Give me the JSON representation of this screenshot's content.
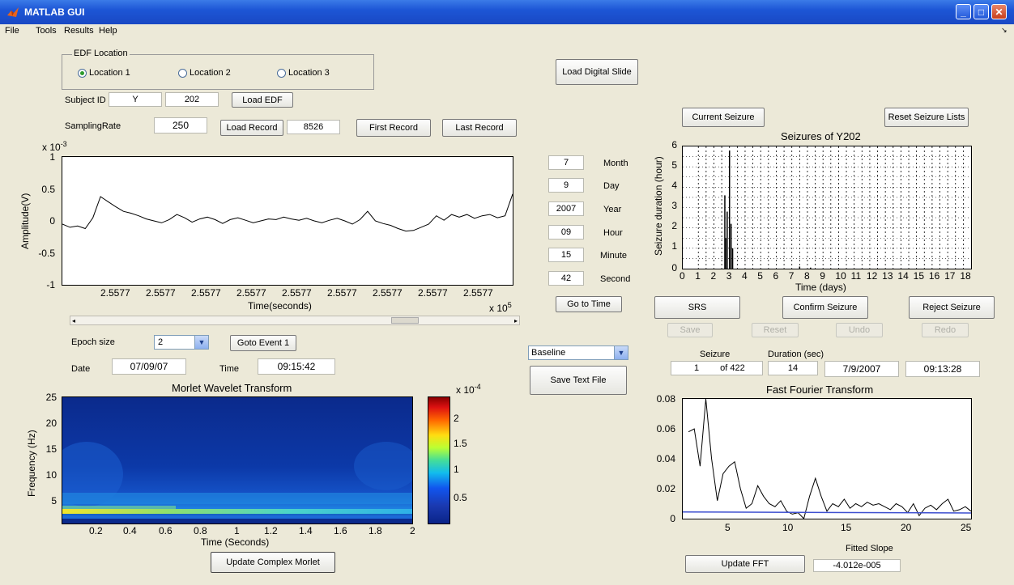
{
  "window": {
    "title": "MATLAB GUI",
    "minimize": "_",
    "maximize": "□",
    "close": "✕"
  },
  "menu": {
    "items": [
      "File",
      "Tools",
      "Results",
      "Help"
    ],
    "corner": "↘"
  },
  "edf": {
    "group_label": "EDF Location",
    "locations": [
      "Location 1",
      "Location 2",
      "Location 3"
    ],
    "selected": 0,
    "subject_label": "Subject ID",
    "subject_name": "Y",
    "subject_number": "202",
    "load_edf": "Load EDF"
  },
  "load_digital_slide": "Load Digital Slide",
  "sampling": {
    "label": "SamplingRate",
    "value": "250",
    "load_record": "Load Record",
    "record_value": "8526",
    "first_record": "First Record",
    "last_record": "Last Record"
  },
  "eeg_plot": {
    "exponent_label": "x 10",
    "exponent": "-3",
    "ylabel": "Amplitude(V)",
    "xlabel": "Time(seconds)",
    "x_exponent_label": "x 10",
    "x_exponent": "5",
    "yticks": [
      "1",
      "0.5",
      "0",
      "-0.5",
      "-1"
    ],
    "xticks": [
      "2.5577",
      "2.5577",
      "2.5577",
      "2.5577",
      "2.5577",
      "2.5577",
      "2.5577",
      "2.5577",
      "2.5577"
    ]
  },
  "datetime": {
    "fields": [
      {
        "label": "Month",
        "value": "7"
      },
      {
        "label": "Day",
        "value": "9"
      },
      {
        "label": "Year",
        "value": "2007"
      },
      {
        "label": "Hour",
        "value": "09"
      },
      {
        "label": "Minute",
        "value": "15"
      },
      {
        "label": "Second",
        "value": "42"
      }
    ],
    "go_to_time": "Go to Time"
  },
  "epoch": {
    "label": "Epoch size",
    "value": "2",
    "goto_event": "Goto Event 1",
    "date_label": "Date",
    "date_value": "07/09/07",
    "time_label": "Time",
    "time_value": "09:15:42"
  },
  "baseline": {
    "selected": "Baseline",
    "save_text": "Save Text File"
  },
  "morlet": {
    "title": "Morlet Wavelet Transform",
    "ylabel": "Frequency (Hz)",
    "xlabel": "Time (Seconds)",
    "yticks": [
      "25",
      "20",
      "15",
      "10",
      "5"
    ],
    "xticks": [
      "0.2",
      "0.4",
      "0.6",
      "0.8",
      "1",
      "1.2",
      "1.4",
      "1.6",
      "1.8",
      "2"
    ],
    "colorbar_exponent_label": "x 10",
    "colorbar_exponent": "-4",
    "colorbar_ticks": [
      "2",
      "1.5",
      "1",
      "0.5"
    ],
    "update_button": "Update Complex Morlet"
  },
  "seizure_controls": {
    "current": "Current Seizure",
    "reset_lists": "Reset Seizure Lists",
    "srs": "SRS",
    "confirm": "Confirm Seizure",
    "reject": "Reject Seizure",
    "save": "Save",
    "reset": "Reset",
    "undo": "Undo",
    "redo": "Redo"
  },
  "seizure_plot": {
    "title": "Seizures of Y202",
    "ylabel": "Seizure duration (hour)",
    "xlabel": "Time (days)",
    "yticks": [
      "6",
      "5",
      "4",
      "3",
      "2",
      "1",
      "0"
    ],
    "xticks": [
      "0",
      "1",
      "2",
      "3",
      "4",
      "5",
      "6",
      "7",
      "8",
      "9",
      "10",
      "11",
      "12",
      "13",
      "14",
      "15",
      "16",
      "17",
      "18"
    ]
  },
  "seizure_info": {
    "seizure_label": "Seizure",
    "duration_label": "Duration (sec)",
    "index": "1",
    "of_total": "of 422",
    "duration": "14",
    "date": "7/9/2007",
    "time": "09:13:28"
  },
  "fft": {
    "title": "Fast Fourier Transform",
    "yticks": [
      "0.08",
      "0.06",
      "0.04",
      "0.02",
      "0"
    ],
    "xticks": [
      "5",
      "10",
      "15",
      "20",
      "25"
    ],
    "fitted_slope_label": "Fitted Slope",
    "fitted_slope": "-4.012e-005",
    "update_button": "Update FFT"
  },
  "chart_data": [
    {
      "type": "line",
      "xlabel": "Time(seconds)",
      "ylabel": "Amplitude(V)",
      "ylim": [
        -0.001,
        0.001
      ],
      "series": [
        {
          "values": [
            -5e-05,
            -0.0001,
            -8e-05,
            -0.00012,
            5e-05,
            0.00038,
            0.0003,
            0.00022,
            0.00015,
            0.00012,
            8e-05,
            3e-05,
            0.0,
            -3e-05,
            2e-05,
            0.0001,
            5e-05,
            -2e-05,
            3e-05,
            6e-05,
            2e-05,
            -4e-05,
            2e-05,
            5e-05,
            1e-05,
            -3e-05,
            0.0,
            3e-05,
            2e-05,
            6e-05,
            3e-05,
            1e-05,
            4e-05,
            0.0,
            -3e-05,
            1e-05,
            4e-05,
            0.0,
            -5e-05,
            2e-05,
            0.00015,
            0.0,
            -4e-05,
            -7e-05,
            -0.00012,
            -0.00016,
            -0.00015,
            -0.0001,
            -5e-05,
            8e-05,
            1e-05,
            0.0001,
            6e-05,
            0.0001,
            4e-05,
            8e-05,
            0.0001,
            5e-05,
            8e-05,
            0.00042
          ]
        }
      ]
    },
    {
      "type": "scatter",
      "title": "Seizures of Y202",
      "xlabel": "Time (days)",
      "ylabel": "Seizure duration (hour)",
      "xlim": [
        0,
        18.5
      ],
      "ylim": [
        0,
        6
      ],
      "series": [
        {
          "points": [
            [
              2.7,
              3.6
            ],
            [
              2.75,
              1.5
            ],
            [
              2.85,
              2.8
            ],
            [
              3.0,
              5.8
            ],
            [
              3.1,
              2.2
            ],
            [
              3.2,
              1.0
            ],
            [
              7.5,
              0.1
            ],
            [
              8.2,
              0.05
            ]
          ]
        }
      ]
    },
    {
      "type": "line",
      "title": "Fast Fourier Transform",
      "xlim": [
        0,
        25
      ],
      "ylim": [
        0,
        0.08
      ],
      "series": [
        {
          "x": [
            0.5,
            1,
            1.5,
            2,
            2.5,
            3,
            3.5,
            4,
            4.5,
            5,
            5.5,
            6,
            6.5,
            7,
            7.5,
            8,
            8.5,
            9,
            9.5,
            10,
            10.5,
            11,
            11.5,
            12,
            12.5,
            13,
            13.5,
            14,
            14.5,
            15,
            15.5,
            16,
            16.5,
            17,
            17.5,
            18,
            18.5,
            19,
            19.5,
            20,
            20.5,
            21,
            21.5,
            22,
            22.5,
            23,
            23.5,
            24,
            24.5,
            25
          ],
          "values": [
            0.058,
            0.06,
            0.035,
            0.08,
            0.04,
            0.012,
            0.03,
            0.035,
            0.038,
            0.02,
            0.007,
            0.01,
            0.022,
            0.015,
            0.01,
            0.008,
            0.012,
            0.005,
            0.003,
            0.004,
            0.0,
            0.015,
            0.027,
            0.015,
            0.005,
            0.01,
            0.008,
            0.013,
            0.007,
            0.01,
            0.008,
            0.011,
            0.009,
            0.01,
            0.008,
            0.006,
            0.01,
            0.008,
            0.004,
            0.01,
            0.002,
            0.007,
            0.009,
            0.006,
            0.01,
            0.013,
            0.005,
            0.006,
            0.008,
            0.005
          ]
        },
        {
          "x": [
            0,
            25
          ],
          "values": [
            0.0045,
            0.0038
          ]
        }
      ]
    },
    {
      "type": "heatmap",
      "title": "Morlet Wavelet Transform",
      "xlabel": "Time (Seconds)",
      "ylabel": "Frequency (Hz)",
      "xlim": [
        0,
        2
      ],
      "ylim": [
        1,
        25
      ],
      "clim": [
        0,
        0.00023
      ]
    }
  ]
}
